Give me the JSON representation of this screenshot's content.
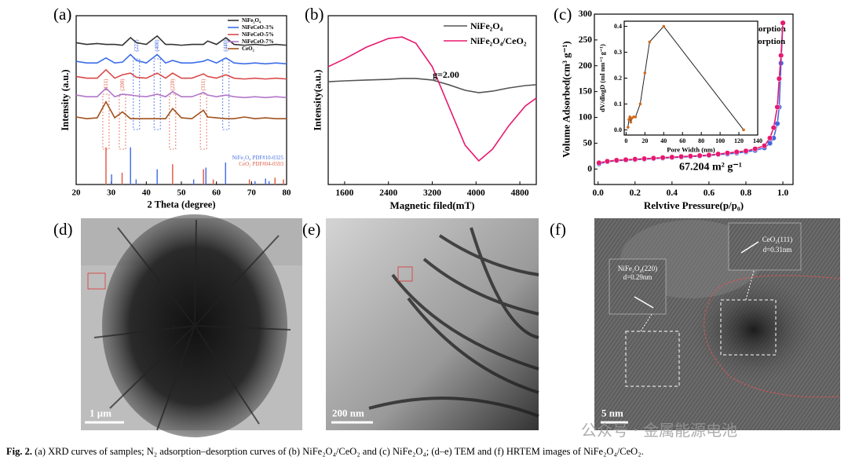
{
  "chart_data": [
    {
      "type": "line",
      "label": "(a)",
      "xlabel": "2 Theta (degree)",
      "ylabel": "Intensity (a.u.)",
      "xlim": [
        20,
        80
      ],
      "xticks": [
        20,
        30,
        40,
        50,
        60,
        70,
        80
      ],
      "ylim": [
        0,
        10
      ],
      "legend": "upper right",
      "x": [
        20,
        23,
        26,
        28.5,
        31,
        33.2,
        35.5,
        37.2,
        40,
        43.1,
        45.5,
        47.5,
        50,
        53,
        56.3,
        57.5,
        60,
        62.7,
        65,
        68,
        71,
        74,
        77,
        80
      ],
      "series": [
        {
          "name": "NiFe₂O₄",
          "color": "#333333",
          "values": [
            8.4,
            8.3,
            8.35,
            8.3,
            8.3,
            8.25,
            8.7,
            8.4,
            8.3,
            8.8,
            8.3,
            8.3,
            8.25,
            8.3,
            8.3,
            8.5,
            8.3,
            8.7,
            8.3,
            8.25,
            8.3,
            8.25,
            8.3,
            8.25
          ]
        },
        {
          "name": "NiFeCeO-3%",
          "color": "#3d6ee8",
          "values": [
            7.3,
            7.2,
            7.2,
            7.5,
            7.2,
            7.25,
            7.7,
            7.35,
            7.2,
            7.7,
            7.2,
            7.35,
            7.2,
            7.2,
            7.3,
            7.4,
            7.2,
            7.5,
            7.2,
            7.15,
            7.2,
            7.15,
            7.2,
            7.15
          ]
        },
        {
          "name": "NiFeCeO-5%",
          "color": "#d94a4a",
          "values": [
            6.4,
            6.3,
            6.3,
            6.8,
            6.3,
            6.5,
            6.6,
            6.35,
            6.3,
            6.6,
            6.3,
            6.6,
            6.3,
            6.3,
            6.55,
            6.4,
            6.3,
            6.5,
            6.3,
            6.25,
            6.3,
            6.25,
            6.3,
            6.25
          ]
        },
        {
          "name": "NiFeCeO-7%",
          "color": "#b276c9",
          "values": [
            5.3,
            5.2,
            5.2,
            5.7,
            5.2,
            5.35,
            5.3,
            5.25,
            5.2,
            5.35,
            5.2,
            5.5,
            5.2,
            5.2,
            5.45,
            5.3,
            5.2,
            5.3,
            5.2,
            5.15,
            5.2,
            5.15,
            5.2,
            5.15
          ]
        },
        {
          "name": "CeO₂",
          "color": "#a0521e",
          "values": [
            4.0,
            3.9,
            3.95,
            4.9,
            3.95,
            4.3,
            3.9,
            3.9,
            3.9,
            3.9,
            3.9,
            4.5,
            3.95,
            3.9,
            4.4,
            4.0,
            3.95,
            3.9,
            3.9,
            4.0,
            3.9,
            3.95,
            3.9,
            3.9
          ]
        }
      ],
      "references": [
        {
          "name": "NiFe₂O₄ PDF#10-0325",
          "color": "#4a72e3",
          "x": [
            30.1,
            35.5,
            37.1,
            43.1,
            53.5,
            57.0,
            62.6,
            71.0,
            74.0,
            75.0
          ],
          "values": [
            0.6,
            2.2,
            0.3,
            0.9,
            0.3,
            1.0,
            1.3,
            0.2,
            0.35,
            0.2
          ]
        },
        {
          "name": "CeO₂ PDF#04-0593",
          "color": "#e0604a",
          "x": [
            28.5,
            33.1,
            47.5,
            56.3,
            59.1,
            69.4,
            76.7,
            79.1
          ],
          "values": [
            2.2,
            0.7,
            1.2,
            0.9,
            0.3,
            0.3,
            0.4,
            0.3
          ]
        }
      ],
      "annotations": [
        {
          "text": "(222)",
          "x": 37.2,
          "color": "#3a62e0"
        },
        {
          "text": "(400)",
          "x": 43.1,
          "color": "#3a62e0"
        },
        {
          "text": "(440)",
          "x": 62.7,
          "color": "#3a62e0"
        },
        {
          "text": "(111)",
          "x": 28.5,
          "color": "#e0604a"
        },
        {
          "text": "(200)",
          "x": 33.2,
          "color": "#e0604a"
        },
        {
          "text": "(220)",
          "x": 47.5,
          "color": "#e0604a"
        },
        {
          "text": "(311)",
          "x": 56.3,
          "color": "#e0604a"
        }
      ]
    },
    {
      "type": "line",
      "label": "(b)",
      "xlabel": "Magnetic filed(mT)",
      "ylabel": "Intensity(a.u.)",
      "xlim": [
        1300,
        5100
      ],
      "xticks": [
        1600,
        2400,
        3200,
        4000,
        4800
      ],
      "ylim": [
        0,
        10
      ],
      "legend": "upper right",
      "note": "g=2.00",
      "x": [
        1300,
        1600,
        2000,
        2400,
        2650,
        2900,
        3200,
        3500,
        3800,
        4050,
        4300,
        4600,
        4900,
        5100
      ],
      "series": [
        {
          "name": "NiFe₂O₄",
          "color": "#555555",
          "values": [
            6.09,
            6.14,
            6.19,
            6.23,
            6.28,
            6.28,
            6.19,
            5.91,
            5.58,
            5.44,
            5.53,
            5.72,
            5.86,
            5.91
          ]
        },
        {
          "name": "NiFe₂O₄/CeO₂",
          "color": "#e8186f",
          "values": [
            6.98,
            7.44,
            8.14,
            8.65,
            8.74,
            8.37,
            6.98,
            4.65,
            2.33,
            1.4,
            2.09,
            3.49,
            4.65,
            5.12
          ]
        }
      ]
    },
    {
      "type": "line",
      "markers": true,
      "label": "(c)",
      "xlabel": "Relvtive Pressure(p/p₀)",
      "ylabel": "Volume Adsorbed(cm³ g⁻¹)",
      "xlim": [
        -0.02,
        1.055
      ],
      "xticks": [
        {
          "value": 0,
          "label": "0.0"
        },
        0.2,
        0.4,
        0.6,
        0.8,
        {
          "value": 1,
          "label": "1.0"
        }
      ],
      "ylim": [
        -30,
        300
      ],
      "yticks": [
        0,
        50,
        100,
        150,
        200,
        250,
        300
      ],
      "legend": "upper right",
      "note": "67.204 m² g⁻¹",
      "x": [
        0.005,
        0.05,
        0.1,
        0.15,
        0.2,
        0.25,
        0.3,
        0.35,
        0.4,
        0.45,
        0.5,
        0.55,
        0.6,
        0.65,
        0.7,
        0.75,
        0.8,
        0.85,
        0.9,
        0.93,
        0.95,
        0.97,
        0.98,
        0.99,
        1.0
      ],
      "series": [
        {
          "name": "absorption",
          "color": "#4169e1",
          "values": [
            10,
            14,
            16,
            17,
            18,
            19,
            20,
            21,
            22,
            23,
            24,
            25,
            26,
            28,
            29,
            31,
            33,
            36,
            41,
            50,
            60,
            88,
            120,
            205,
            283
          ]
        },
        {
          "name": "desorption",
          "color": "#e8186f",
          "values": [
            12,
            15,
            17,
            18,
            19,
            20,
            21,
            22,
            23,
            24,
            25,
            26,
            27,
            29,
            31,
            33,
            35,
            39,
            45,
            60,
            80,
            120,
            175,
            220,
            283
          ]
        }
      ]
    },
    {
      "type": "line",
      "markers": true,
      "xlabel": "Pore Width (nm)",
      "ylabel": "dV/dlogD (ml nm⁻¹ g⁻¹)",
      "xlim": [
        -2,
        140
      ],
      "xticks": [
        0,
        20,
        40,
        60,
        80,
        100,
        120,
        140
      ],
      "ylim": [
        -0.02,
        0.42
      ],
      "yticks": [
        {
          "value": 0,
          "label": "0.0"
        },
        0.1,
        0.2,
        0.3,
        0.4
      ],
      "x": [
        2,
        3,
        4,
        5,
        6,
        8,
        10,
        15,
        20,
        25,
        40,
        125
      ],
      "series": [
        {
          "color": "#d2691e",
          "values": [
            0.01,
            0.04,
            0.05,
            0.03,
            0.045,
            0.05,
            0.05,
            0.1,
            0.22,
            0.34,
            0.4,
            0.0
          ]
        }
      ]
    }
  ],
  "images": [
    {
      "label": "(d)",
      "scale_bar": "1 μm"
    },
    {
      "label": "(e)",
      "scale_bar": "200 nm"
    },
    {
      "label": "(f)",
      "scale_bar": "5 nm",
      "annotations": [
        "NiFe₂O₄(220)",
        "d=0.29nm",
        "CeO₂(111)",
        "d=0.31nm"
      ]
    }
  ],
  "watermark": "公众号 · 金属能源电池",
  "caption": {
    "lead": "Fig. 2.",
    "text": "(a) XRD curves of samples; N₂ adsorption–desorption curves of (b) NiFe₂O₄/CeO₂ and (c) NiFe₂O₄; (d–e) TEM and (f) HRTEM images of NiFe₂O₄/CeO₂."
  }
}
